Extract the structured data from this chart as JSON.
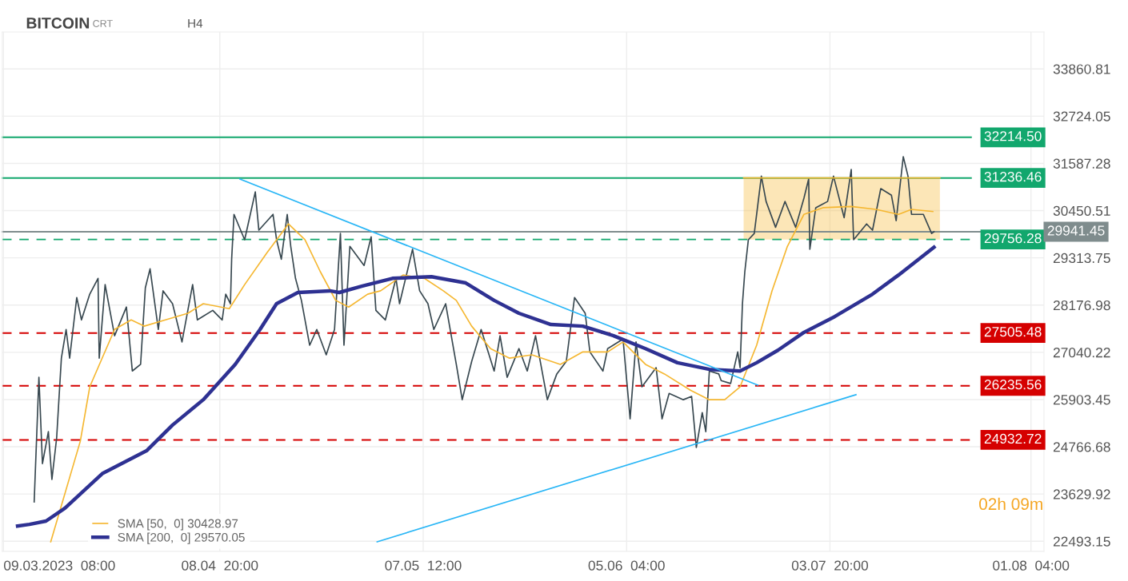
{
  "chart_data": {
    "type": "line",
    "title": "BITCOIN",
    "annotations": [
      "CRT",
      "H4",
      "02h 09m"
    ],
    "xlim": [
      "2023-03-09T04:00",
      "2023-08-03T00:00"
    ],
    "xticks": [
      {
        "value": "2023-03-09T08:00",
        "label": "09.03.2023  08:00"
      },
      {
        "value": "2023-04-08T20:00",
        "label": "08.04  20:00"
      },
      {
        "value": "2023-05-07T12:00",
        "label": "07.05  12:00"
      },
      {
        "value": "2023-06-05T04:00",
        "label": "05.06  04:00"
      },
      {
        "value": "2023-07-03T20:00",
        "label": "03.07  20:00"
      },
      {
        "value": "2023-08-01T04:00",
        "label": "01.08  04:00"
      }
    ],
    "ylim": [
      22250,
      34750
    ],
    "yticks": [
      22493.15,
      23629.92,
      24766.68,
      25903.45,
      27040.22,
      28176.98,
      29313.75,
      30450.51,
      31587.28,
      32724.05,
      33860.81
    ],
    "grid": true,
    "legend": "bottom left",
    "marker": "none",
    "line_style": "solid",
    "series": [
      {
        "color": "#37474f",
        "x": [
          "2023-03-13T16:00",
          "2023-03-14T08:00",
          "2023-03-14T20:00",
          "2023-03-15T16:00",
          "2023-03-16T04:00",
          "2023-03-16T20:00",
          "2023-03-17T12:00",
          "2023-03-18T04:00",
          "2023-03-18T16:00",
          "2023-03-19T16:00",
          "2023-03-20T08:00",
          "2023-03-21T12:00",
          "2023-03-22T16:00",
          "2023-03-22T20:00",
          "2023-03-23T16:00",
          "2023-03-25T00:00",
          "2023-03-26T16:00",
          "2023-03-27T12:00",
          "2023-03-28T16:00",
          "2023-03-29T08:00",
          "2023-03-30T00:00",
          "2023-03-31T04:00",
          "2023-03-31T20:00",
          "2023-04-02T04:00",
          "2023-04-03T12:00",
          "2023-04-05T00:00",
          "2023-04-05T16:00",
          "2023-04-07T20:00",
          "2023-04-09T04:00",
          "2023-04-09T16:00",
          "2023-04-10T08:00",
          "2023-04-10T12:00",
          "2023-04-10T20:00",
          "2023-04-12T08:00",
          "2023-04-13T20:00",
          "2023-04-14T08:00",
          "2023-04-16T08:00",
          "2023-04-16T20:00",
          "2023-04-17T12:00",
          "2023-04-18T08:00",
          "2023-04-18T20:00",
          "2023-04-19T12:00",
          "2023-04-20T08:00",
          "2023-04-21T12:00",
          "2023-04-22T12:00",
          "2023-04-23T20:00",
          "2023-04-25T00:00",
          "2023-04-25T20:00",
          "2023-04-26T08:00",
          "2023-04-27T04:00",
          "2023-04-29T04:00",
          "2023-04-30T04:00",
          "2023-04-30T20:00",
          "2023-05-02T04:00",
          "2023-05-03T16:00",
          "2023-05-04T04:00",
          "2023-05-06T00:00",
          "2023-05-07T00:00",
          "2023-05-08T04:00",
          "2023-05-09T00:00",
          "2023-05-10T16:00",
          "2023-05-12T04:00",
          "2023-05-13T00:00",
          "2023-05-14T08:00",
          "2023-05-15T16:00",
          "2023-05-17T12:00",
          "2023-05-18T08:00",
          "2023-05-19T08:00",
          "2023-05-21T00:00",
          "2023-05-22T04:00",
          "2023-05-23T08:00",
          "2023-05-25T00:00",
          "2023-05-26T08:00",
          "2023-05-27T16:00",
          "2023-05-28T20:00",
          "2023-05-30T08:00",
          "2023-05-31T00:00",
          "2023-06-01T20:00",
          "2023-06-02T12:00",
          "2023-06-04T16:00",
          "2023-06-05T16:00",
          "2023-06-06T12:00",
          "2023-06-07T08:00",
          "2023-06-09T08:00",
          "2023-06-10T04:00",
          "2023-06-11T04:00",
          "2023-06-13T04:00",
          "2023-06-14T08:00",
          "2023-06-15T00:00",
          "2023-06-15T20:00",
          "2023-06-16T08:00",
          "2023-06-16T20:00",
          "2023-06-18T04:00",
          "2023-06-18T12:00",
          "2023-06-19T20:00",
          "2023-06-20T20:00",
          "2023-06-21T04:00",
          "2023-06-21T12:00",
          "2023-06-21T20:00",
          "2023-06-22T08:00",
          "2023-06-23T04:00",
          "2023-06-24T04:00",
          "2023-06-24T20:00",
          "2023-06-26T04:00",
          "2023-06-27T12:00",
          "2023-06-29T00:00",
          "2023-06-30T04:00",
          "2023-06-30T20:00",
          "2023-07-01T00:00",
          "2023-07-01T20:00",
          "2023-07-03T12:00",
          "2023-07-04T08:00",
          "2023-07-05T20:00",
          "2023-07-06T20:00",
          "2023-07-07T04:00",
          "2023-07-09T00:00",
          "2023-07-09T20:00",
          "2023-07-11T00:00",
          "2023-07-12T12:00",
          "2023-07-13T04:00",
          "2023-07-14T04:00",
          "2023-07-14T20:00",
          "2023-07-15T08:00",
          "2023-07-17T00:00",
          "2023-07-18T04:00",
          "2023-07-18T12:00"
        ],
        "values": [
          23440,
          26440,
          24360,
          25130,
          23980,
          24980,
          26900,
          27590,
          26900,
          28360,
          27820,
          28440,
          28820,
          26900,
          28670,
          27440,
          28130,
          26590,
          26750,
          28590,
          29050,
          27590,
          28520,
          28210,
          27290,
          28670,
          27820,
          28050,
          27820,
          28440,
          28210,
          29280,
          30360,
          29750,
          30900,
          29980,
          30360,
          29750,
          29280,
          30360,
          29590,
          28820,
          28290,
          27210,
          27590,
          26980,
          27590,
          29900,
          27210,
          29590,
          29130,
          29820,
          28050,
          27820,
          28820,
          28210,
          29520,
          28520,
          28210,
          27590,
          28210,
          26750,
          25900,
          26820,
          27590,
          26590,
          27440,
          26440,
          27130,
          26590,
          27440,
          25900,
          26520,
          26820,
          28360,
          27980,
          27050,
          26590,
          27130,
          27360,
          25440,
          27290,
          26210,
          26670,
          25440,
          26050,
          25900,
          25980,
          24750,
          25590,
          25130,
          26590,
          26520,
          26360,
          26290,
          27050,
          26670,
          28210,
          28980,
          29750,
          29900,
          31280,
          30670,
          30050,
          30670,
          30050,
          30750,
          31210,
          29520,
          30520,
          30670,
          31280,
          30280,
          31440,
          29750,
          30130,
          29980,
          30980,
          30820,
          30210,
          31750,
          31280,
          30360,
          30360,
          29900,
          29941.45
        ]
      },
      {
        "name": "SMA [50,  0] 30428.97",
        "color": "#f5b731",
        "x": [
          "2023-03-16T00:00",
          "2023-03-20T04:00",
          "2023-03-21T12:00",
          "2023-03-25T00:00",
          "2023-03-27T08:00",
          "2023-03-29T04:00",
          "2023-04-01T04:00",
          "2023-04-04T08:00",
          "2023-04-06T12:00",
          "2023-04-10T04:00",
          "2023-04-12T08:00",
          "2023-04-15T12:00",
          "2023-04-18T12:00",
          "2023-04-20T20:00",
          "2023-04-23T00:00",
          "2023-04-25T04:00",
          "2023-04-27T00:00",
          "2023-04-29T16:00",
          "2023-05-01T12:00",
          "2023-05-04T16:00",
          "2023-05-07T16:00",
          "2023-05-10T08:00",
          "2023-05-12T04:00",
          "2023-05-14T08:00",
          "2023-05-17T00:00",
          "2023-05-19T16:00",
          "2023-05-22T20:00",
          "2023-05-26T20:00",
          "2023-05-30T00:00",
          "2023-06-02T12:00",
          "2023-06-04T16:00",
          "2023-06-07T20:00",
          "2023-06-10T12:00",
          "2023-06-14T04:00",
          "2023-06-16T20:00",
          "2023-06-19T00:00",
          "2023-06-21T04:00",
          "2023-06-23T12:00",
          "2023-06-25T16:00",
          "2023-06-27T20:00",
          "2023-06-30T04:00",
          "2023-07-02T20:00",
          "2023-07-06T20:00",
          "2023-07-10T08:00",
          "2023-07-13T12:00",
          "2023-07-15T08:00",
          "2023-07-18T08:00"
        ],
        "values": [
          22480,
          24900,
          26210,
          27590,
          27820,
          27670,
          27820,
          27980,
          28210,
          28090,
          28670,
          29440,
          30130,
          29750,
          28980,
          28290,
          28130,
          28440,
          28520,
          28900,
          28820,
          28520,
          28290,
          27670,
          27130,
          26900,
          26980,
          26750,
          27050,
          27050,
          27290,
          26750,
          26520,
          26130,
          25900,
          25900,
          26210,
          27210,
          28520,
          29590,
          30360,
          30520,
          30550,
          30480,
          30360,
          30480,
          30428.97
        ]
      },
      {
        "name": "SMA [200,  0] 29570.05",
        "color": "#2e3192",
        "x": [
          "2023-03-11T08:00",
          "2023-03-13T00:00",
          "2023-03-15T08:00",
          "2023-03-18T00:00",
          "2023-03-23T08:00",
          "2023-03-29T12:00",
          "2023-04-02T04:00",
          "2023-04-06T12:00",
          "2023-04-11T00:00",
          "2023-04-14T12:00",
          "2023-04-16T20:00",
          "2023-04-19T20:00",
          "2023-04-24T08:00",
          "2023-04-25T16:00",
          "2023-04-28T20:00",
          "2023-05-03T04:00",
          "2023-05-08T16:00",
          "2023-05-13T12:00",
          "2023-05-17T12:00",
          "2023-05-21T00:00",
          "2023-05-25T12:00",
          "2023-05-30T00:00",
          "2023-06-03T08:00",
          "2023-06-07T20:00",
          "2023-06-12T08:00",
          "2023-06-16T20:00",
          "2023-06-19T00:00",
          "2023-06-21T04:00",
          "2023-06-23T12:00",
          "2023-06-26T12:00",
          "2023-06-30T04:00",
          "2023-07-04T12:00",
          "2023-07-09T20:00",
          "2023-07-13T12:00",
          "2023-07-18T12:00"
        ],
        "values": [
          22860,
          22900,
          22980,
          23290,
          24130,
          24670,
          25290,
          25900,
          26750,
          27590,
          28210,
          28480,
          28520,
          28480,
          28630,
          28820,
          28860,
          28710,
          28290,
          27980,
          27710,
          27670,
          27440,
          27130,
          26790,
          26630,
          26610,
          26590,
          26790,
          27090,
          27520,
          27900,
          28440,
          28900,
          29570.05
        ]
      },
      {
        "color": "#29b6f6",
        "x": [
          "2023-04-11T16:00",
          "2023-06-23T16:00"
        ],
        "values": [
          31210,
          26250
        ]
      },
      {
        "color": "#29b6f6",
        "x": [
          "2023-05-01T00:00",
          "2023-07-07T12:00"
        ],
        "values": [
          22480,
          26020
        ]
      },
      {
        "color": "#f5b731",
        "x": [
          "2023-06-21T16:00",
          "2023-07-19T08:00"
        ],
        "values": [
          31236.46,
          31236.46
        ],
        "lower": [
          29756.28,
          29756.28
        ],
        "upper": [
          31236.46,
          31236.46
        ]
      }
    ],
    "ref_lines": [
      {
        "axis": "y",
        "value": 32214.5,
        "label": "32214.50",
        "color": "#12a76d",
        "line_style": "solid"
      },
      {
        "axis": "y",
        "value": 31236.46,
        "label": "31236.46",
        "color": "#12a76d",
        "line_style": "solid"
      },
      {
        "axis": "y",
        "value": 29756.28,
        "label": "29756.28",
        "color": "#12a76d",
        "line_style": "dashed"
      },
      {
        "axis": "y",
        "value": 29941.45,
        "label": "29941.45",
        "color": "#7f8c8d",
        "line_style": "solid"
      },
      {
        "axis": "y",
        "value": 27505.48,
        "label": "27505.48",
        "color": "#d50000",
        "line_style": "dashed"
      },
      {
        "axis": "y",
        "value": 26235.56,
        "label": "26235.56",
        "color": "#d50000",
        "line_style": "dashed"
      },
      {
        "axis": "y",
        "value": 24932.72,
        "label": "24932.72",
        "color": "#d50000",
        "line_style": "dashed"
      }
    ]
  }
}
